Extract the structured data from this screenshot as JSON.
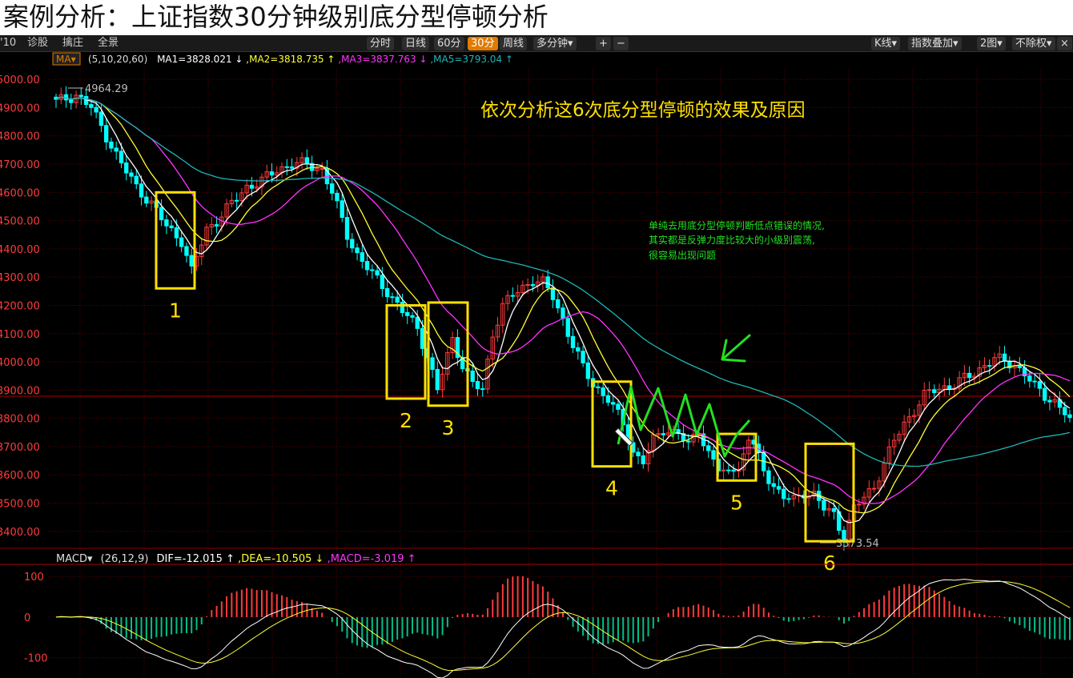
{
  "page_title": "案例分析：上证指数30分钟级别底分型停顿分析",
  "toolbar": {
    "left_items": [
      "'10",
      "诊股",
      "擒庄",
      "全景"
    ],
    "center_items": [
      "分时",
      "日线",
      "60分",
      "30分",
      "周线",
      "多分钟▾",
      "+",
      "−"
    ],
    "active_item": "30分",
    "right_items": [
      "K线▾",
      "指数叠加▾",
      "2图▾",
      "不除权▾",
      "×"
    ]
  },
  "colors": {
    "up": "#ff3b3b",
    "down": "#00ffff",
    "ma1": "#ffffff",
    "ma2": "#ffff33",
    "ma3": "#ff33ff",
    "ma5": "#1fb5b5",
    "box": "#ffe000",
    "note": "#22e022",
    "grid": "#5a0000"
  },
  "ma_legend": {
    "name": "MA▾",
    "params": "(5,10,20,60)",
    "ma1": "MA1=3828.021 ↓",
    "ma2": ",MA2=3818.735 ↑",
    "ma3": ",MA3=3837.763 ↓",
    "ma5": ",MA5=3793.04 ↑"
  },
  "macd_legend": {
    "name": "MACD▾",
    "params": "(26,12,9)",
    "dif": "DIF=-12.015 ↑",
    "dea": ",DEA=-10.505 ↓",
    "macd": ",MACD=-3.019 ↑"
  },
  "annotations": {
    "main_note": "依次分析这6次底分型停顿的效果及原因",
    "side_note": [
      "单纯去用底分型停顿判断低点错误的情况,",
      "其实都是反弹力度比较大的小级别震荡,",
      "很容易出现问题"
    ],
    "high_label": "4964.29",
    "low_label": "3373.54",
    "box_labels": [
      "1",
      "2",
      "3",
      "4",
      "5",
      "6"
    ]
  },
  "chart_data": {
    "type": "candlestick",
    "price_axis": {
      "ylim": [
        3340,
        5040
      ],
      "ticks": [
        5000,
        4900,
        4800,
        4700,
        4600,
        4500,
        4400,
        4300,
        4200,
        4100,
        4000,
        3900,
        3800,
        3700,
        3600,
        3500,
        3400
      ],
      "tick_labels": [
        "5000.00",
        "4900.00",
        "4800.00",
        "4700.00",
        "4600.00",
        "4500.00",
        "4400.00",
        "4300.00",
        "4200.00",
        "4100.00",
        "4000.00",
        "3900.00",
        "3800.00",
        "3700.00",
        "3600.00",
        "3500.00",
        "3400.00"
      ]
    },
    "macd_axis": {
      "ylim": [
        -150,
        130
      ],
      "ticks": [
        100,
        0,
        -100
      ],
      "tick_labels": [
        "100",
        "0",
        "-100"
      ]
    },
    "bars": 150,
    "price_path": [
      [
        0,
        4920
      ],
      [
        4,
        4945
      ],
      [
        7,
        4900
      ],
      [
        10,
        4800
      ],
      [
        13,
        4700
      ],
      [
        16,
        4620
      ],
      [
        19,
        4560
      ],
      [
        22,
        4480
      ],
      [
        25,
        4430
      ],
      [
        27,
        4320
      ],
      [
        30,
        4470
      ],
      [
        32,
        4500
      ],
      [
        35,
        4560
      ],
      [
        38,
        4620
      ],
      [
        41,
        4640
      ],
      [
        44,
        4680
      ],
      [
        47,
        4700
      ],
      [
        50,
        4700
      ],
      [
        53,
        4680
      ],
      [
        55,
        4600
      ],
      [
        58,
        4450
      ],
      [
        60,
        4380
      ],
      [
        63,
        4310
      ],
      [
        66,
        4250
      ],
      [
        69,
        4180
      ],
      [
        72,
        4120
      ],
      [
        74,
        4020
      ],
      [
        76,
        3900
      ],
      [
        79,
        4080
      ],
      [
        81,
        3990
      ],
      [
        83,
        3920
      ],
      [
        85,
        3900
      ],
      [
        87,
        4100
      ],
      [
        89,
        4200
      ],
      [
        92,
        4250
      ],
      [
        95,
        4290
      ],
      [
        97,
        4280
      ],
      [
        99,
        4230
      ],
      [
        101,
        4150
      ],
      [
        103,
        4060
      ],
      [
        105,
        3980
      ],
      [
        107,
        3920
      ],
      [
        110,
        3870
      ],
      [
        113,
        3780
      ],
      [
        115,
        3680
      ],
      [
        117,
        3650
      ],
      [
        119,
        3720
      ],
      [
        121,
        3760
      ],
      [
        124,
        3750
      ],
      [
        126,
        3700
      ],
      [
        128,
        3760
      ],
      [
        130,
        3680
      ],
      [
        132,
        3620
      ],
      [
        134,
        3600
      ],
      [
        136,
        3640
      ],
      [
        138,
        3710
      ]
    ],
    "price_path_2": [
      [
        0,
        3700
      ],
      [
        2,
        3620
      ],
      [
        4,
        3560
      ],
      [
        6,
        3520
      ],
      [
        8,
        3510
      ],
      [
        10,
        3540
      ],
      [
        12,
        3530
      ],
      [
        14,
        3480
      ],
      [
        16,
        3460
      ],
      [
        18,
        3380
      ],
      [
        20,
        3480
      ],
      [
        22,
        3520
      ],
      [
        24,
        3560
      ],
      [
        26,
        3640
      ],
      [
        28,
        3720
      ],
      [
        30,
        3780
      ],
      [
        32,
        3830
      ],
      [
        34,
        3880
      ],
      [
        36,
        3900
      ],
      [
        38,
        3910
      ],
      [
        40,
        3920
      ],
      [
        42,
        3940
      ],
      [
        44,
        3960
      ],
      [
        46,
        3990
      ],
      [
        48,
        4010
      ],
      [
        50,
        4000
      ],
      [
        52,
        3990
      ],
      [
        54,
        3960
      ],
      [
        56,
        3910
      ],
      [
        58,
        3880
      ],
      [
        60,
        3860
      ],
      [
        62,
        3820
      ],
      [
        63,
        3790
      ]
    ],
    "bottom_fractal_boxes": [
      {
        "label": "1",
        "price_top": 4600,
        "price_bottom": 4260
      },
      {
        "label": "2",
        "price_top": 4200,
        "price_bottom": 3870
      },
      {
        "label": "3",
        "price_top": 4210,
        "price_bottom": 3845
      },
      {
        "label": "4",
        "price_top": 3930,
        "price_bottom": 3630
      },
      {
        "label": "5",
        "price_top": 3745,
        "price_bottom": 3580
      },
      {
        "label": "6",
        "price_top": 3710,
        "price_bottom": 3365
      }
    ],
    "series": [
      {
        "name": "MA1",
        "period": 5
      },
      {
        "name": "MA2",
        "period": 10
      },
      {
        "name": "MA3",
        "period": 20
      },
      {
        "name": "MA5",
        "period": 60
      },
      {
        "name": "DIF"
      },
      {
        "name": "DEA"
      },
      {
        "name": "MACD"
      }
    ]
  }
}
